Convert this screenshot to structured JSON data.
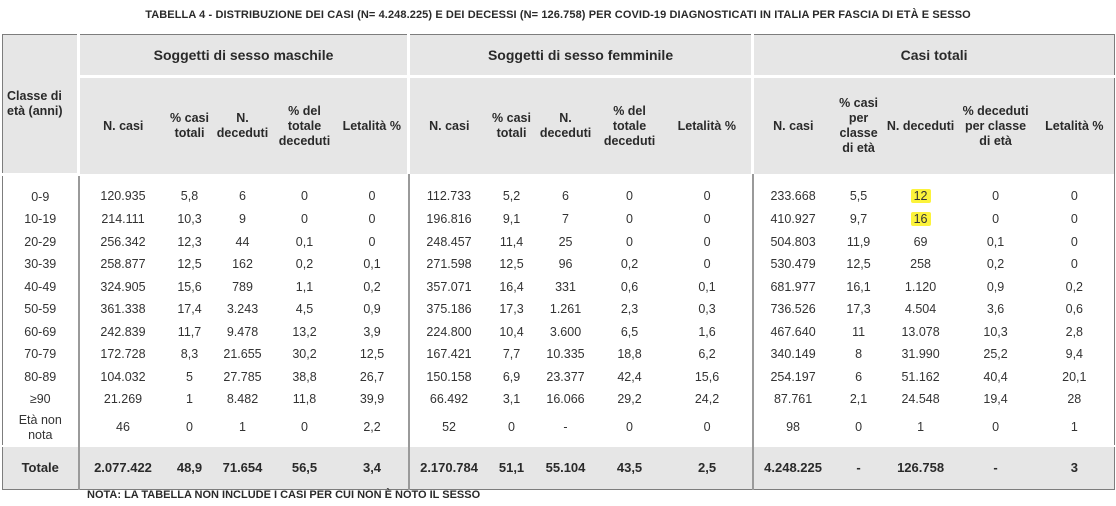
{
  "caption": "TABELLA 4 - DISTRIBUZIONE DEI CASI (N= 4.248.225) E DEI DECESSI (N= 126.758) PER COVID-19 DIAGNOSTICATI IN ITALIA PER FASCIA DI ETÀ E SESSO",
  "groups": {
    "male": "Soggetti di sesso maschile",
    "female": "Soggetti di sesso femminile",
    "total": "Casi totali"
  },
  "headers": {
    "age": "Classe di età (anni)",
    "n_casi": "N. casi",
    "pct_casi": "% casi totali",
    "n_deceduti": "N. deceduti",
    "pct_deceduti": "% del totale deceduti",
    "letalita": "Letalità %",
    "pct_casi_classe": "% casi per classe di età",
    "pct_deceduti_classe": "% deceduti per classe di età"
  },
  "rows": [
    [
      "0-9",
      "120.935",
      "5,8",
      "6",
      "0",
      "0",
      "112.733",
      "5,2",
      "6",
      "0",
      "0",
      "233.668",
      "5,5",
      "12",
      "0",
      "0"
    ],
    [
      "10-19",
      "214.111",
      "10,3",
      "9",
      "0",
      "0",
      "196.816",
      "9,1",
      "7",
      "0",
      "0",
      "410.927",
      "9,7",
      "16",
      "0",
      "0"
    ],
    [
      "20-29",
      "256.342",
      "12,3",
      "44",
      "0,1",
      "0",
      "248.457",
      "11,4",
      "25",
      "0",
      "0",
      "504.803",
      "11,9",
      "69",
      "0,1",
      "0"
    ],
    [
      "30-39",
      "258.877",
      "12,5",
      "162",
      "0,2",
      "0,1",
      "271.598",
      "12,5",
      "96",
      "0,2",
      "0",
      "530.479",
      "12,5",
      "258",
      "0,2",
      "0"
    ],
    [
      "40-49",
      "324.905",
      "15,6",
      "789",
      "1,1",
      "0,2",
      "357.071",
      "16,4",
      "331",
      "0,6",
      "0,1",
      "681.977",
      "16,1",
      "1.120",
      "0,9",
      "0,2"
    ],
    [
      "50-59",
      "361.338",
      "17,4",
      "3.243",
      "4,5",
      "0,9",
      "375.186",
      "17,3",
      "1.261",
      "2,3",
      "0,3",
      "736.526",
      "17,3",
      "4.504",
      "3,6",
      "0,6"
    ],
    [
      "60-69",
      "242.839",
      "11,7",
      "9.478",
      "13,2",
      "3,9",
      "224.800",
      "10,4",
      "3.600",
      "6,5",
      "1,6",
      "467.640",
      "11",
      "13.078",
      "10,3",
      "2,8"
    ],
    [
      "70-79",
      "172.728",
      "8,3",
      "21.655",
      "30,2",
      "12,5",
      "167.421",
      "7,7",
      "10.335",
      "18,8",
      "6,2",
      "340.149",
      "8",
      "31.990",
      "25,2",
      "9,4"
    ],
    [
      "80-89",
      "104.032",
      "5",
      "27.785",
      "38,8",
      "26,7",
      "150.158",
      "6,9",
      "23.377",
      "42,4",
      "15,6",
      "254.197",
      "6",
      "51.162",
      "40,4",
      "20,1"
    ],
    [
      "≥90",
      "21.269",
      "1",
      "8.482",
      "11,8",
      "39,9",
      "66.492",
      "3,1",
      "16.066",
      "29,2",
      "24,2",
      "87.761",
      "2,1",
      "24.548",
      "19,4",
      "28"
    ],
    [
      "Età non nota",
      "46",
      "0",
      "1",
      "0",
      "2,2",
      "52",
      "0",
      "-",
      "0",
      "0",
      "98",
      "0",
      "1",
      "0",
      "1"
    ]
  ],
  "totals": [
    "Totale",
    "2.077.422",
    "48,9",
    "71.654",
    "56,5",
    "3,4",
    "2.170.784",
    "51,1",
    "55.104",
    "43,5",
    "2,5",
    "4.248.225",
    "-",
    "126.758",
    "-",
    "3"
  ],
  "highlight_color": "#fcf33b",
  "note": "NOTA: LA TABELLA NON INCLUDE I CASI PER CUI NON È NOTO IL SESSO"
}
